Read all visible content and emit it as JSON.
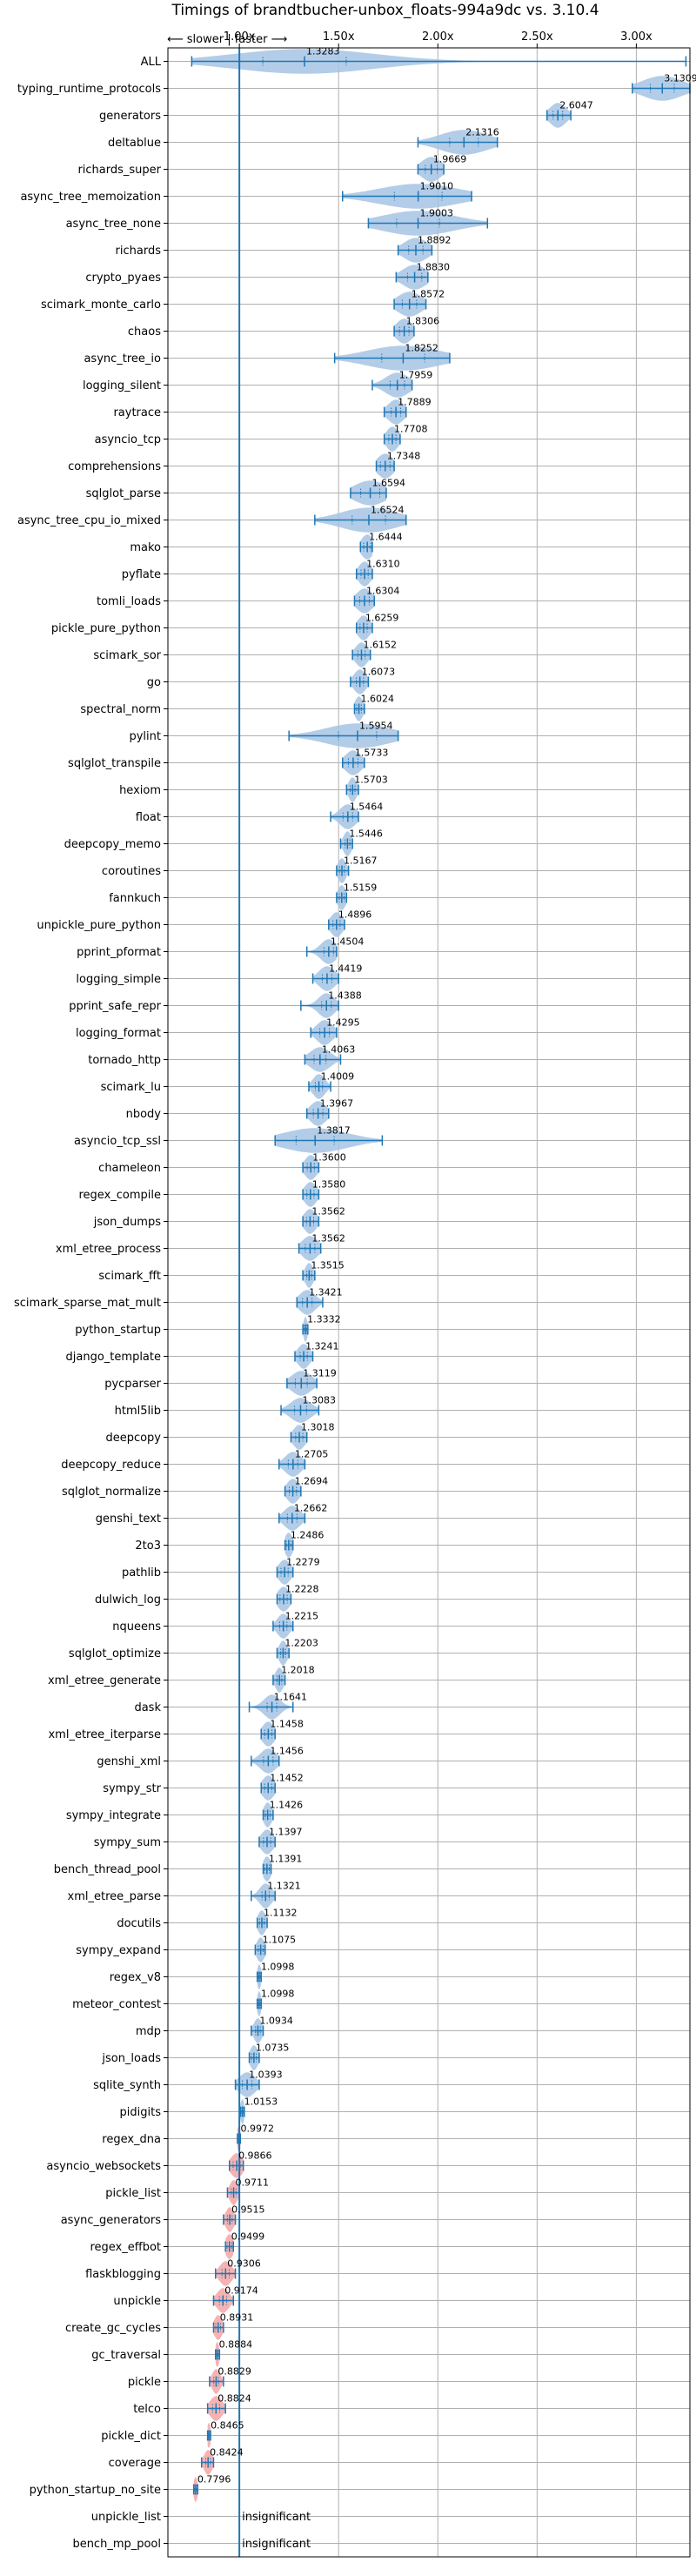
{
  "chart_data": {
    "type": "violin",
    "title": "Timings of brandtbucher-unbox_floats-994a9dc vs. 3.10.4",
    "direction_label": "⟵ slower | faster ⟶",
    "x_ticks": [
      "1.00x",
      "1.50x",
      "2.00x",
      "2.50x",
      "3.00x"
    ],
    "x_tick_values": [
      1.0,
      1.5,
      2.0,
      2.5,
      3.0
    ],
    "xlim": [
      0.64,
      3.27
    ],
    "reference_line": 1.0,
    "grid": true,
    "colors": {
      "faster": "#a6c4e4",
      "slower": "#f4a6a6",
      "line": "#1f77b4",
      "grid": "#b0b0b0"
    },
    "benchmarks": [
      {
        "name": "ALL",
        "value": 1.3283,
        "label": "1.3283",
        "range": [
          0.76,
          3.25
        ],
        "spread": 0.35
      },
      {
        "name": "typing_runtime_protocols",
        "value": 3.1309,
        "label": "3.1309",
        "range": [
          2.98,
          3.27
        ],
        "spread": 0.1
      },
      {
        "name": "generators",
        "value": 2.6047,
        "label": "2.6047",
        "range": [
          2.55,
          2.67
        ],
        "spread": 0.04
      },
      {
        "name": "deltablue",
        "value": 2.1316,
        "label": "2.1316",
        "range": [
          1.9,
          2.3
        ],
        "spread": 0.12
      },
      {
        "name": "richards_super",
        "value": 1.9669,
        "label": "1.9669",
        "range": [
          1.9,
          2.03
        ],
        "spread": 0.05
      },
      {
        "name": "async_tree_memoization",
        "value": 1.901,
        "label": "1.9010",
        "range": [
          1.52,
          2.17
        ],
        "spread": 0.2
      },
      {
        "name": "async_tree_none",
        "value": 1.9003,
        "label": "1.9003",
        "range": [
          1.65,
          2.25
        ],
        "spread": 0.18
      },
      {
        "name": "richards",
        "value": 1.8892,
        "label": "1.8892",
        "range": [
          1.8,
          1.97
        ],
        "spread": 0.06
      },
      {
        "name": "crypto_pyaes",
        "value": 1.883,
        "label": "1.8830",
        "range": [
          1.79,
          1.95
        ],
        "spread": 0.06
      },
      {
        "name": "scimark_monte_carlo",
        "value": 1.8572,
        "label": "1.8572",
        "range": [
          1.78,
          1.94
        ],
        "spread": 0.06
      },
      {
        "name": "chaos",
        "value": 1.8306,
        "label": "1.8306",
        "range": [
          1.78,
          1.88
        ],
        "spread": 0.04
      },
      {
        "name": "async_tree_io",
        "value": 1.8252,
        "label": "1.8252",
        "range": [
          1.48,
          2.06
        ],
        "spread": 0.18
      },
      {
        "name": "logging_silent",
        "value": 1.7959,
        "label": "1.7959",
        "range": [
          1.67,
          1.87
        ],
        "spread": 0.06
      },
      {
        "name": "raytrace",
        "value": 1.7889,
        "label": "1.7889",
        "range": [
          1.73,
          1.84
        ],
        "spread": 0.04
      },
      {
        "name": "asyncio_tcp",
        "value": 1.7708,
        "label": "1.7708",
        "range": [
          1.73,
          1.81
        ],
        "spread": 0.03
      },
      {
        "name": "comprehensions",
        "value": 1.7348,
        "label": "1.7348",
        "range": [
          1.69,
          1.78
        ],
        "spread": 0.04
      },
      {
        "name": "sqlglot_parse",
        "value": 1.6594,
        "label": "1.6594",
        "range": [
          1.56,
          1.74
        ],
        "spread": 0.08
      },
      {
        "name": "async_tree_cpu_io_mixed",
        "value": 1.6524,
        "label": "1.6524",
        "range": [
          1.38,
          1.84
        ],
        "spread": 0.14
      },
      {
        "name": "mako",
        "value": 1.6444,
        "label": "1.6444",
        "range": [
          1.61,
          1.67
        ],
        "spread": 0.03
      },
      {
        "name": "pyflate",
        "value": 1.631,
        "label": "1.6310",
        "range": [
          1.59,
          1.67
        ],
        "spread": 0.03
      },
      {
        "name": "tomli_loads",
        "value": 1.6304,
        "label": "1.6304",
        "range": [
          1.58,
          1.68
        ],
        "spread": 0.04
      },
      {
        "name": "pickle_pure_python",
        "value": 1.6259,
        "label": "1.6259",
        "range": [
          1.59,
          1.67
        ],
        "spread": 0.03
      },
      {
        "name": "scimark_sor",
        "value": 1.6152,
        "label": "1.6152",
        "range": [
          1.57,
          1.66
        ],
        "spread": 0.03
      },
      {
        "name": "go",
        "value": 1.6073,
        "label": "1.6073",
        "range": [
          1.56,
          1.65
        ],
        "spread": 0.03
      },
      {
        "name": "spectral_norm",
        "value": 1.6024,
        "label": "1.6024",
        "range": [
          1.58,
          1.63
        ],
        "spread": 0.02
      },
      {
        "name": "pylint",
        "value": 1.5954,
        "label": "1.5954",
        "range": [
          1.25,
          1.8
        ],
        "spread": 0.16
      },
      {
        "name": "sqlglot_transpile",
        "value": 1.5733,
        "label": "1.5733",
        "range": [
          1.52,
          1.63
        ],
        "spread": 0.04
      },
      {
        "name": "hexiom",
        "value": 1.5703,
        "label": "1.5703",
        "range": [
          1.54,
          1.6
        ],
        "spread": 0.02
      },
      {
        "name": "float",
        "value": 1.5464,
        "label": "1.5464",
        "range": [
          1.46,
          1.6
        ],
        "spread": 0.04
      },
      {
        "name": "deepcopy_memo",
        "value": 1.5446,
        "label": "1.5446",
        "range": [
          1.51,
          1.57
        ],
        "spread": 0.02
      },
      {
        "name": "coroutines",
        "value": 1.5167,
        "label": "1.5167",
        "range": [
          1.49,
          1.55
        ],
        "spread": 0.02
      },
      {
        "name": "fannkuch",
        "value": 1.5159,
        "label": "1.5159",
        "range": [
          1.49,
          1.54
        ],
        "spread": 0.02
      },
      {
        "name": "unpickle_pure_python",
        "value": 1.4896,
        "label": "1.4896",
        "range": [
          1.45,
          1.53
        ],
        "spread": 0.03
      },
      {
        "name": "pprint_pformat",
        "value": 1.4504,
        "label": "1.4504",
        "range": [
          1.34,
          1.49
        ],
        "spread": 0.04
      },
      {
        "name": "logging_simple",
        "value": 1.4419,
        "label": "1.4419",
        "range": [
          1.37,
          1.5
        ],
        "spread": 0.04
      },
      {
        "name": "pprint_safe_repr",
        "value": 1.4388,
        "label": "1.4388",
        "range": [
          1.31,
          1.5
        ],
        "spread": 0.04
      },
      {
        "name": "logging_format",
        "value": 1.4295,
        "label": "1.4295",
        "range": [
          1.36,
          1.49
        ],
        "spread": 0.04
      },
      {
        "name": "tornado_http",
        "value": 1.4063,
        "label": "1.4063",
        "range": [
          1.33,
          1.51
        ],
        "spread": 0.05
      },
      {
        "name": "scimark_lu",
        "value": 1.4009,
        "label": "1.4009",
        "range": [
          1.35,
          1.46
        ],
        "spread": 0.03
      },
      {
        "name": "nbody",
        "value": 1.3967,
        "label": "1.3967",
        "range": [
          1.34,
          1.45
        ],
        "spread": 0.04
      },
      {
        "name": "asyncio_tcp_ssl",
        "value": 1.3817,
        "label": "1.3817",
        "range": [
          1.18,
          1.72
        ],
        "spread": 0.16
      },
      {
        "name": "chameleon",
        "value": 1.36,
        "label": "1.3600",
        "range": [
          1.32,
          1.4
        ],
        "spread": 0.03
      },
      {
        "name": "regex_compile",
        "value": 1.358,
        "label": "1.3580",
        "range": [
          1.32,
          1.4
        ],
        "spread": 0.03
      },
      {
        "name": "json_dumps",
        "value": 1.3562,
        "label": "1.3562",
        "range": [
          1.32,
          1.4
        ],
        "spread": 0.03
      },
      {
        "name": "xml_etree_process",
        "value": 1.3562,
        "label": "1.3562",
        "range": [
          1.3,
          1.41
        ],
        "spread": 0.04
      },
      {
        "name": "scimark_fft",
        "value": 1.3515,
        "label": "1.3515",
        "range": [
          1.32,
          1.38
        ],
        "spread": 0.02
      },
      {
        "name": "scimark_sparse_mat_mult",
        "value": 1.3421,
        "label": "1.3421",
        "range": [
          1.29,
          1.42
        ],
        "spread": 0.04
      },
      {
        "name": "python_startup",
        "value": 1.3332,
        "label": "1.3332",
        "range": [
          1.32,
          1.345
        ],
        "spread": 0.01
      },
      {
        "name": "django_template",
        "value": 1.3241,
        "label": "1.3241",
        "range": [
          1.28,
          1.37
        ],
        "spread": 0.03
      },
      {
        "name": "pycparser",
        "value": 1.3119,
        "label": "1.3119",
        "range": [
          1.24,
          1.39
        ],
        "spread": 0.05
      },
      {
        "name": "html5lib",
        "value": 1.3083,
        "label": "1.3083",
        "range": [
          1.21,
          1.4
        ],
        "spread": 0.05
      },
      {
        "name": "deepcopy",
        "value": 1.3018,
        "label": "1.3018",
        "range": [
          1.26,
          1.34
        ],
        "spread": 0.03
      },
      {
        "name": "deepcopy_reduce",
        "value": 1.2705,
        "label": "1.2705",
        "range": [
          1.2,
          1.33
        ],
        "spread": 0.04
      },
      {
        "name": "sqlglot_normalize",
        "value": 1.2694,
        "label": "1.2694",
        "range": [
          1.23,
          1.31
        ],
        "spread": 0.03
      },
      {
        "name": "genshi_text",
        "value": 1.2662,
        "label": "1.2662",
        "range": [
          1.2,
          1.33
        ],
        "spread": 0.04
      },
      {
        "name": "2to3",
        "value": 1.2486,
        "label": "1.2486",
        "range": [
          1.23,
          1.27
        ],
        "spread": 0.02
      },
      {
        "name": "pathlib",
        "value": 1.2279,
        "label": "1.2279",
        "range": [
          1.19,
          1.27
        ],
        "spread": 0.03
      },
      {
        "name": "dulwich_log",
        "value": 1.2228,
        "label": "1.2228",
        "range": [
          1.19,
          1.26
        ],
        "spread": 0.03
      },
      {
        "name": "nqueens",
        "value": 1.2215,
        "label": "1.2215",
        "range": [
          1.17,
          1.27
        ],
        "spread": 0.03
      },
      {
        "name": "sqlglot_optimize",
        "value": 1.2203,
        "label": "1.2203",
        "range": [
          1.19,
          1.25
        ],
        "spread": 0.02
      },
      {
        "name": "xml_etree_generate",
        "value": 1.2018,
        "label": "1.2018",
        "range": [
          1.17,
          1.23
        ],
        "spread": 0.02
      },
      {
        "name": "dask",
        "value": 1.1641,
        "label": "1.1641",
        "range": [
          1.05,
          1.27
        ],
        "spread": 0.04
      },
      {
        "name": "xml_etree_iterparse",
        "value": 1.1458,
        "label": "1.1458",
        "range": [
          1.11,
          1.18
        ],
        "spread": 0.03
      },
      {
        "name": "genshi_xml",
        "value": 1.1456,
        "label": "1.1456",
        "range": [
          1.06,
          1.2
        ],
        "spread": 0.04
      },
      {
        "name": "sympy_str",
        "value": 1.1452,
        "label": "1.1452",
        "range": [
          1.11,
          1.18
        ],
        "spread": 0.03
      },
      {
        "name": "sympy_integrate",
        "value": 1.1426,
        "label": "1.1426",
        "range": [
          1.12,
          1.17
        ],
        "spread": 0.02
      },
      {
        "name": "sympy_sum",
        "value": 1.1397,
        "label": "1.1397",
        "range": [
          1.1,
          1.18
        ],
        "spread": 0.03
      },
      {
        "name": "bench_thread_pool",
        "value": 1.1391,
        "label": "1.1391",
        "range": [
          1.12,
          1.16
        ],
        "spread": 0.02
      },
      {
        "name": "xml_etree_parse",
        "value": 1.1321,
        "label": "1.1321",
        "range": [
          1.06,
          1.18
        ],
        "spread": 0.03
      },
      {
        "name": "docutils",
        "value": 1.1132,
        "label": "1.1132",
        "range": [
          1.09,
          1.14
        ],
        "spread": 0.02
      },
      {
        "name": "sympy_expand",
        "value": 1.1075,
        "label": "1.1075",
        "range": [
          1.08,
          1.13
        ],
        "spread": 0.02
      },
      {
        "name": "regex_v8",
        "value": 1.0998,
        "label": "1.0998",
        "range": [
          1.09,
          1.11
        ],
        "spread": 0.01
      },
      {
        "name": "meteor_contest",
        "value": 1.0998,
        "label": "1.0998",
        "range": [
          1.09,
          1.11
        ],
        "spread": 0.01
      },
      {
        "name": "mdp",
        "value": 1.0934,
        "label": "1.0934",
        "range": [
          1.06,
          1.12
        ],
        "spread": 0.02
      },
      {
        "name": "json_loads",
        "value": 1.0735,
        "label": "1.0735",
        "range": [
          1.05,
          1.1
        ],
        "spread": 0.02
      },
      {
        "name": "sqlite_synth",
        "value": 1.0393,
        "label": "1.0393",
        "range": [
          0.98,
          1.1
        ],
        "spread": 0.04
      },
      {
        "name": "pidigits",
        "value": 1.0153,
        "label": "1.0153",
        "range": [
          1.005,
          1.025
        ],
        "spread": 0.01
      },
      {
        "name": "regex_dna",
        "value": 0.9972,
        "label": "0.9972",
        "range": [
          0.99,
          1.005
        ],
        "spread": 0.01
      },
      {
        "name": "asyncio_websockets",
        "value": 0.9866,
        "label": "0.9866",
        "range": [
          0.95,
          1.02
        ],
        "spread": 0.03
      },
      {
        "name": "pickle_list",
        "value": 0.9711,
        "label": "0.9711",
        "range": [
          0.94,
          1.0
        ],
        "spread": 0.02
      },
      {
        "name": "async_generators",
        "value": 0.9515,
        "label": "0.9515",
        "range": [
          0.92,
          0.98
        ],
        "spread": 0.02
      },
      {
        "name": "regex_effbot",
        "value": 0.9499,
        "label": "0.9499",
        "range": [
          0.93,
          0.97
        ],
        "spread": 0.02
      },
      {
        "name": "flaskblogging",
        "value": 0.9306,
        "label": "0.9306",
        "range": [
          0.88,
          0.98
        ],
        "spread": 0.03
      },
      {
        "name": "unpickle",
        "value": 0.9174,
        "label": "0.9174",
        "range": [
          0.87,
          0.97
        ],
        "spread": 0.03
      },
      {
        "name": "create_gc_cycles",
        "value": 0.8931,
        "label": "0.8931",
        "range": [
          0.87,
          0.92
        ],
        "spread": 0.02
      },
      {
        "name": "gc_traversal",
        "value": 0.8884,
        "label": "0.8884",
        "range": [
          0.88,
          0.9
        ],
        "spread": 0.01
      },
      {
        "name": "pickle",
        "value": 0.8829,
        "label": "0.8829",
        "range": [
          0.85,
          0.92
        ],
        "spread": 0.02
      },
      {
        "name": "telco",
        "value": 0.8824,
        "label": "0.8824",
        "range": [
          0.84,
          0.93
        ],
        "spread": 0.03
      },
      {
        "name": "pickle_dict",
        "value": 0.8465,
        "label": "0.8465",
        "range": [
          0.84,
          0.855
        ],
        "spread": 0.01
      },
      {
        "name": "coverage",
        "value": 0.8424,
        "label": "0.8424",
        "range": [
          0.81,
          0.87
        ],
        "spread": 0.02
      },
      {
        "name": "python_startup_no_site",
        "value": 0.7796,
        "label": "0.7796",
        "range": [
          0.77,
          0.79
        ],
        "spread": 0.01
      },
      {
        "name": "unpickle_list",
        "value": null,
        "label": "insignificant"
      },
      {
        "name": "bench_mp_pool",
        "value": null,
        "label": "insignificant"
      }
    ]
  }
}
